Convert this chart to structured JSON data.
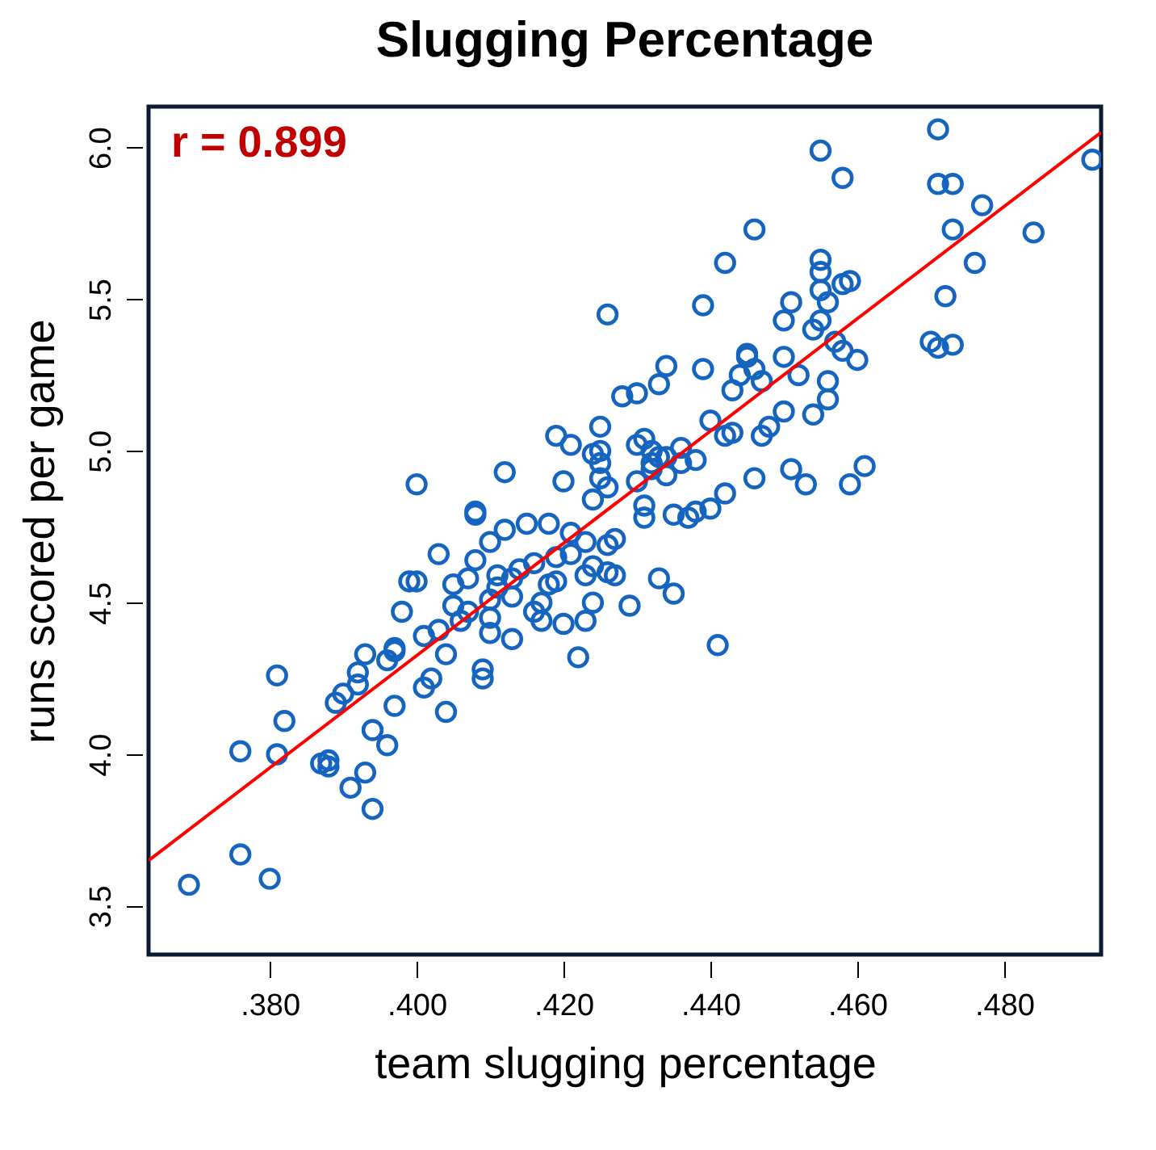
{
  "chart_data": {
    "type": "scatter",
    "title": "Slugging Percentage",
    "xlabel": "team slugging percentage",
    "ylabel": "runs scored per game",
    "annotations": [
      "r = 0.899"
    ],
    "xlim": [
      0.3635,
      0.4932
    ],
    "ylim": [
      3.34,
      6.135
    ],
    "xticks": [
      {
        "value": 0.38,
        "label": ".380"
      },
      {
        "value": 0.4,
        "label": ".400"
      },
      {
        "value": 0.42,
        "label": ".420"
      },
      {
        "value": 0.44,
        "label": ".440"
      },
      {
        "value": 0.46,
        "label": ".460"
      },
      {
        "value": 0.48,
        "label": ".480"
      }
    ],
    "yticks": [
      3.5,
      {
        "value": 4,
        "label": "4.0"
      },
      4.5,
      {
        "value": 5,
        "label": "5.0"
      },
      5.5,
      {
        "value": 6,
        "label": "6.0"
      }
    ],
    "grid": false,
    "series": [
      {
        "type": "scatter",
        "color": "#1565c0",
        "marker": "circle",
        "x": [
          0.369,
          0.376,
          0.38,
          0.376,
          0.381,
          0.381,
          0.382,
          0.387,
          0.388,
          0.388,
          0.389,
          0.39,
          0.392,
          0.392,
          0.393,
          0.391,
          0.393,
          0.394,
          0.394,
          0.396,
          0.397,
          0.396,
          0.397,
          0.397,
          0.398,
          0.399,
          0.4,
          0.4,
          0.401,
          0.401,
          0.402,
          0.403,
          0.403,
          0.404,
          0.404,
          0.405,
          0.405,
          0.406,
          0.407,
          0.407,
          0.408,
          0.408,
          0.408,
          0.409,
          0.409,
          0.41,
          0.41,
          0.41,
          0.41,
          0.411,
          0.411,
          0.412,
          0.412,
          0.413,
          0.413,
          0.413,
          0.414,
          0.415,
          0.416,
          0.416,
          0.417,
          0.417,
          0.418,
          0.418,
          0.419,
          0.419,
          0.419,
          0.42,
          0.42,
          0.421,
          0.421,
          0.421,
          0.422,
          0.423,
          0.423,
          0.423,
          0.424,
          0.424,
          0.424,
          0.424,
          0.425,
          0.425,
          0.425,
          0.425,
          0.426,
          0.426,
          0.426,
          0.426,
          0.427,
          0.427,
          0.428,
          0.429,
          0.43,
          0.43,
          0.43,
          0.431,
          0.431,
          0.431,
          0.432,
          0.432,
          0.432,
          0.433,
          0.433,
          0.433,
          0.434,
          0.434,
          0.434,
          0.435,
          0.435,
          0.436,
          0.436,
          0.437,
          0.438,
          0.438,
          0.439,
          0.439,
          0.44,
          0.44,
          0.441,
          0.442,
          0.442,
          0.442,
          0.443,
          0.443,
          0.444,
          0.445,
          0.445,
          0.446,
          0.446,
          0.446,
          0.447,
          0.447,
          0.448,
          0.45,
          0.45,
          0.45,
          0.451,
          0.451,
          0.452,
          0.453,
          0.454,
          0.454,
          0.455,
          0.455,
          0.455,
          0.455,
          0.455,
          0.456,
          0.456,
          0.456,
          0.457,
          0.458,
          0.458,
          0.458,
          0.459,
          0.459,
          0.46,
          0.461,
          0.47,
          0.471,
          0.471,
          0.471,
          0.472,
          0.473,
          0.473,
          0.473,
          0.476,
          0.477,
          0.484,
          0.492
        ],
        "values": [
          3.57,
          3.67,
          3.59,
          4.01,
          4.0,
          4.26,
          4.11,
          3.97,
          3.96,
          3.98,
          4.17,
          4.2,
          4.23,
          4.27,
          4.33,
          3.89,
          3.94,
          3.82,
          4.08,
          4.03,
          4.16,
          4.31,
          4.34,
          4.35,
          4.47,
          4.57,
          4.57,
          4.89,
          4.39,
          4.22,
          4.25,
          4.41,
          4.66,
          4.33,
          4.14,
          4.49,
          4.56,
          4.44,
          4.47,
          4.58,
          4.79,
          4.8,
          4.64,
          4.28,
          4.25,
          4.4,
          4.45,
          4.51,
          4.7,
          4.55,
          4.59,
          4.93,
          4.74,
          4.52,
          4.58,
          4.38,
          4.61,
          4.76,
          4.63,
          4.47,
          4.5,
          4.44,
          4.76,
          4.56,
          4.65,
          4.57,
          5.05,
          4.9,
          4.43,
          4.66,
          4.73,
          5.02,
          4.32,
          4.7,
          4.44,
          4.59,
          4.5,
          4.62,
          4.84,
          4.99,
          5.08,
          4.91,
          4.96,
          5.0,
          4.88,
          4.69,
          4.6,
          5.45,
          4.71,
          4.59,
          5.18,
          4.49,
          5.19,
          5.02,
          4.9,
          4.78,
          5.04,
          4.82,
          5.0,
          4.96,
          4.94,
          4.58,
          4.98,
          5.22,
          5.28,
          4.92,
          4.98,
          4.79,
          4.53,
          4.96,
          5.01,
          4.78,
          4.8,
          4.97,
          5.27,
          5.48,
          5.1,
          4.81,
          4.36,
          5.05,
          4.86,
          5.62,
          5.06,
          5.2,
          5.25,
          5.32,
          5.31,
          5.27,
          5.73,
          4.91,
          5.23,
          5.05,
          5.08,
          5.31,
          5.13,
          5.43,
          5.49,
          4.94,
          5.25,
          4.89,
          5.4,
          5.12,
          5.43,
          5.63,
          5.59,
          5.53,
          5.99,
          5.49,
          5.17,
          5.23,
          5.36,
          5.33,
          5.55,
          5.9,
          5.56,
          4.89,
          5.3,
          4.95,
          5.36,
          5.34,
          5.88,
          6.06,
          5.51,
          5.35,
          5.73,
          5.88,
          5.62,
          5.81,
          5.72,
          5.96
        ]
      },
      {
        "type": "line",
        "color": "#ff0000",
        "x": [
          0.3635,
          0.4932
        ],
        "values": [
          3.65,
          6.05
        ]
      }
    ]
  }
}
